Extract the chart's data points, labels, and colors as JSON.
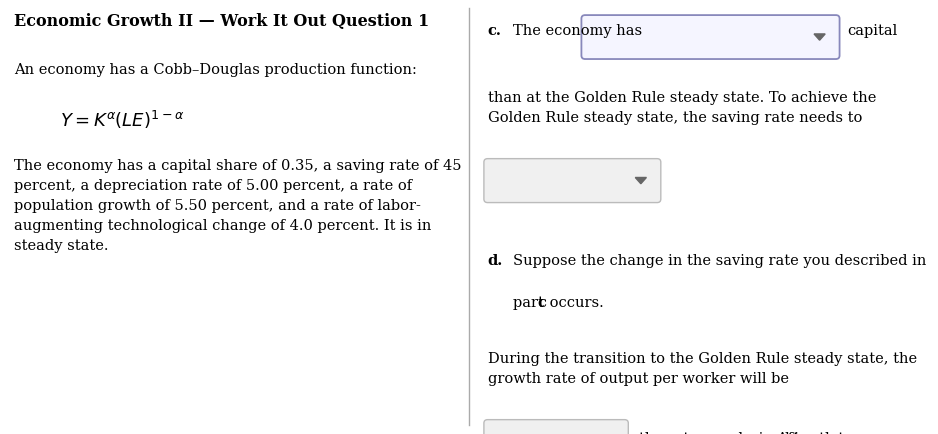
{
  "title": "Economic Growth II — Work It Out Question 1",
  "left_intro": "An economy has a Cobb–Douglas production function:",
  "left_formula": "$Y = K^{\\alpha}(LE)^{1-\\alpha}$",
  "left_body": "The economy has a capital share of 0.35, a saving rate of 45\npercent, a depreciation rate of 5.00 percent, a rate of\npopulation growth of 5.50 percent, and a rate of labor-\naugmenting technological change of 4.0 percent. It is in\nsteady state.",
  "bg_color": "#ffffff",
  "text_color": "#000000",
  "divider_color": "#aaaaaa",
  "dropdown_border_active": "#8888bb",
  "dropdown_border_inactive": "#bbbbbb",
  "dropdown_bg_active": "#f5f5ff",
  "dropdown_bg_inactive": "#f0f0f0",
  "font_size_title": 11.5,
  "font_size_body": 10.5,
  "font_size_formula": 13
}
